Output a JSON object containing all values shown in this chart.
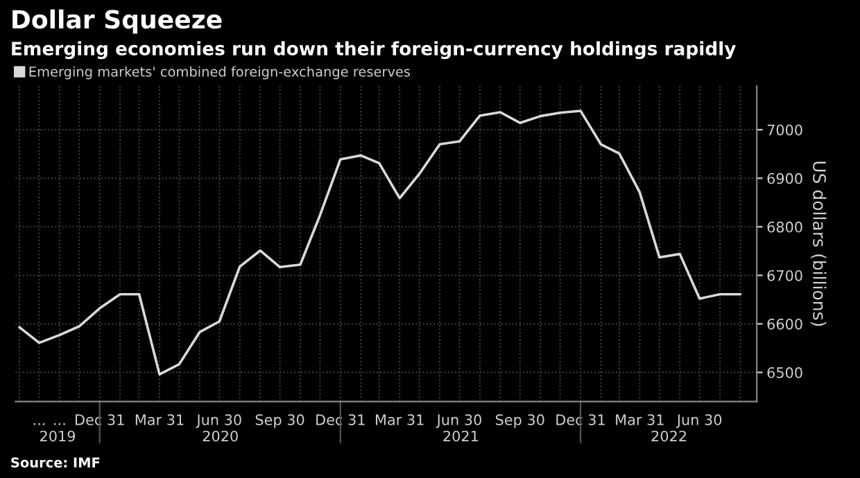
{
  "chart_data": {
    "type": "line",
    "title": "Dollar Squeeze",
    "subtitle": "Emerging economies run down their foreign-currency holdings rapidly",
    "ylabel": "US dollars (billions)",
    "x": [
      "2019-08-31",
      "2019-09-30",
      "2019-10-31",
      "2019-11-30",
      "2019-12-31",
      "2020-01-31",
      "2020-02-29",
      "2020-03-31",
      "2020-04-30",
      "2020-05-31",
      "2020-06-30",
      "2020-07-31",
      "2020-08-31",
      "2020-09-30",
      "2020-10-31",
      "2020-11-30",
      "2020-12-31",
      "2021-01-31",
      "2021-02-28",
      "2021-03-31",
      "2021-04-30",
      "2021-05-31",
      "2021-06-30",
      "2021-07-31",
      "2021-08-31",
      "2021-09-30",
      "2021-10-31",
      "2021-11-30",
      "2021-12-31",
      "2022-01-31",
      "2022-02-28",
      "2022-03-31",
      "2022-04-30",
      "2022-05-31",
      "2022-06-30",
      "2022-07-31",
      "2022-08-31"
    ],
    "series": [
      {
        "name": "Emerging markets' combined foreign-exchange reserves",
        "color": "#d9d9d9",
        "values": [
          6593,
          6561,
          6577,
          6595,
          6632,
          6661,
          6661,
          6496,
          6517,
          6583,
          6605,
          6718,
          6751,
          6717,
          6722,
          6824,
          6939,
          6947,
          6931,
          6859,
          6909,
          6970,
          6976,
          7029,
          7036,
          7014,
          7028,
          7035,
          7039,
          6970,
          6951,
          6871,
          6737,
          6744,
          6652,
          6661,
          6661
        ]
      }
    ],
    "xlim": [
      "2019-08-25",
      "2022-09-25"
    ],
    "xticks": [
      {
        "value": "2019-08-31",
        "label": null
      },
      {
        "value": "2019-09-30",
        "label": "..."
      },
      {
        "value": "2019-10-31",
        "label": "..."
      },
      {
        "value": "2019-11-30",
        "label": null
      },
      {
        "value": "2019-12-31",
        "label": "Dec 31"
      },
      {
        "value": "2020-01-31",
        "label": null
      },
      {
        "value": "2020-02-29",
        "label": null
      },
      {
        "value": "2020-03-31",
        "label": "Mar 31"
      },
      {
        "value": "2020-04-30",
        "label": null
      },
      {
        "value": "2020-05-31",
        "label": null
      },
      {
        "value": "2020-06-30",
        "label": "Jun 30"
      },
      {
        "value": "2020-07-31",
        "label": null
      },
      {
        "value": "2020-08-31",
        "label": null
      },
      {
        "value": "2020-09-30",
        "label": "Sep 30"
      },
      {
        "value": "2020-10-31",
        "label": null
      },
      {
        "value": "2020-11-30",
        "label": null
      },
      {
        "value": "2020-12-31",
        "label": "Dec 31"
      },
      {
        "value": "2021-01-31",
        "label": null
      },
      {
        "value": "2021-02-28",
        "label": null
      },
      {
        "value": "2021-03-31",
        "label": "Mar 31"
      },
      {
        "value": "2021-04-30",
        "label": null
      },
      {
        "value": "2021-05-31",
        "label": null
      },
      {
        "value": "2021-06-30",
        "label": "Jun 30"
      },
      {
        "value": "2021-07-31",
        "label": null
      },
      {
        "value": "2021-08-31",
        "label": null
      },
      {
        "value": "2021-09-30",
        "label": "Sep 30"
      },
      {
        "value": "2021-10-31",
        "label": null
      },
      {
        "value": "2021-11-30",
        "label": null
      },
      {
        "value": "2021-12-31",
        "label": "Dec 31"
      },
      {
        "value": "2022-01-31",
        "label": null
      },
      {
        "value": "2022-02-28",
        "label": null
      },
      {
        "value": "2022-03-31",
        "label": "Mar 31"
      },
      {
        "value": "2022-04-30",
        "label": null
      },
      {
        "value": "2022-05-31",
        "label": null
      },
      {
        "value": "2022-06-30",
        "label": "Jun 30"
      },
      {
        "value": "2022-07-31",
        "label": null
      },
      {
        "value": "2022-08-31",
        "label": null
      }
    ],
    "ylim": [
      6440,
      7090
    ],
    "yticks": [
      6500,
      6600,
      6700,
      6800,
      6900,
      7000
    ],
    "grid": true,
    "legend": "top left",
    "marker": "none",
    "line_style": "solid",
    "annotations": [
      "2019",
      "2020",
      "2021",
      "2022",
      "Source: IMF"
    ]
  }
}
